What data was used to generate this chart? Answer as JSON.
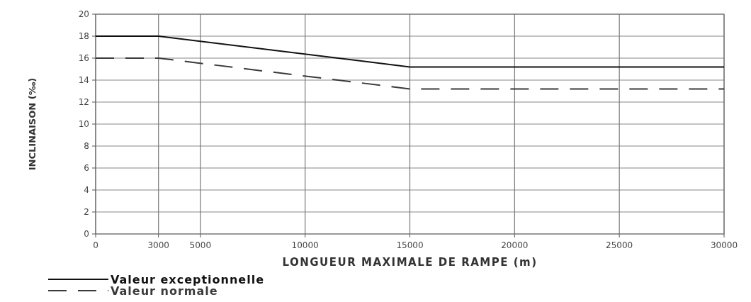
{
  "chart_data": {
    "type": "line",
    "xlabel": "LONGUEUR MAXIMALE DE RAMPE (m)",
    "ylabel": "INCLINAISON (‰)",
    "xlim": [
      0,
      30000
    ],
    "xticks": [
      0,
      3000,
      5000,
      10000,
      15000,
      20000,
      25000,
      30000
    ],
    "ylim": [
      0,
      20
    ],
    "yticks": [
      0,
      2,
      4,
      6,
      8,
      10,
      12,
      14,
      16,
      18,
      20
    ],
    "grid": true,
    "legend": "bottom left",
    "marker": "none",
    "x": [
      0,
      3000,
      15000,
      30000
    ],
    "series": [
      {
        "name": "Valeur exceptionnelle",
        "color": "#111111",
        "values": [
          18,
          18,
          15.2,
          15.2
        ],
        "line_style": "solid"
      },
      {
        "name": "Valeur normale",
        "color": "#3a3a3a",
        "values": [
          16,
          16,
          13.2,
          13.2
        ],
        "line_style": "dashed"
      }
    ]
  }
}
